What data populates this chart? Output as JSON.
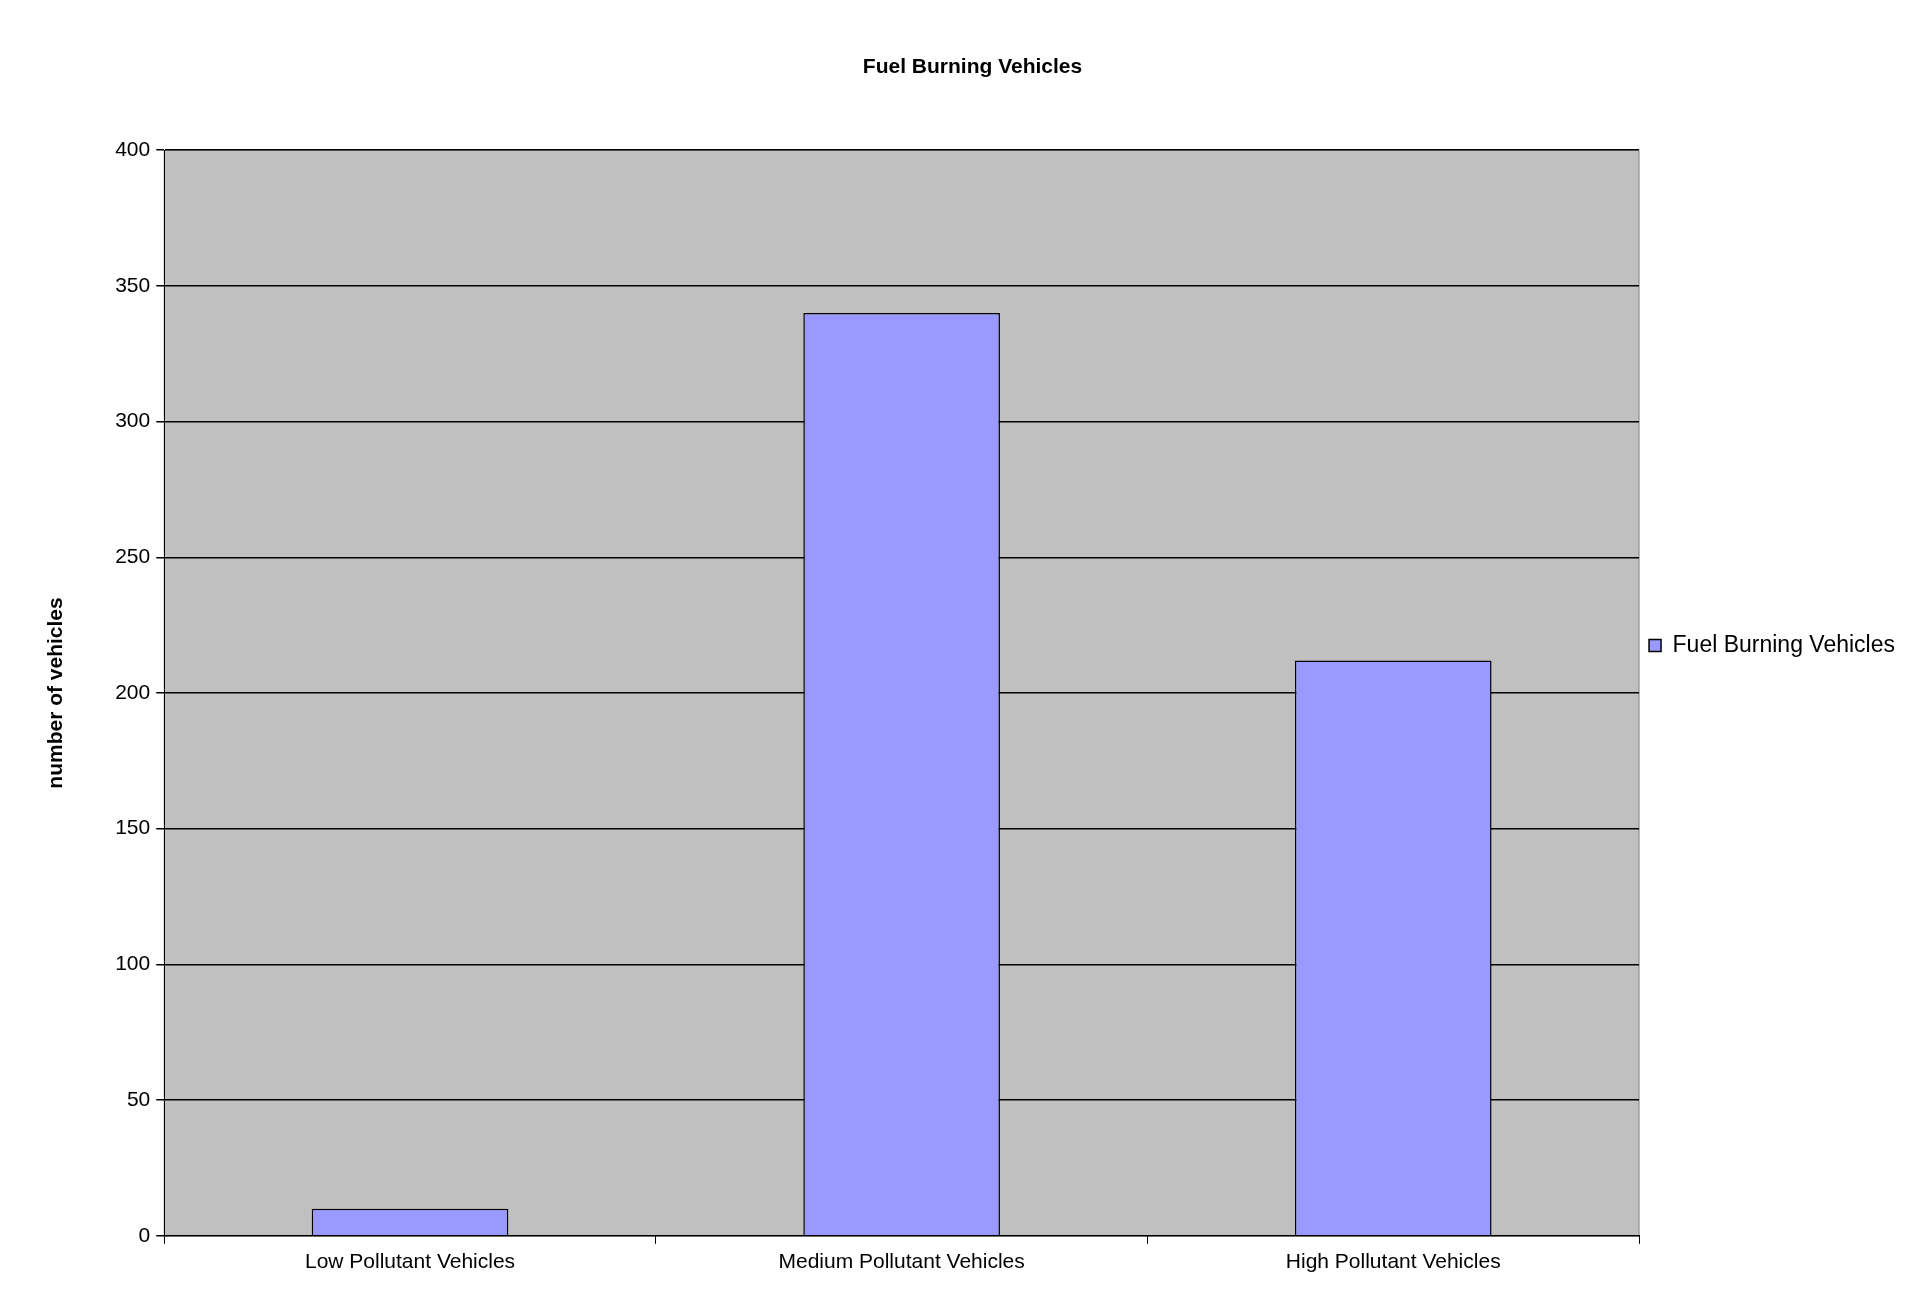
{
  "chart_data": {
    "type": "bar",
    "title": "Fuel Burning Vehicles",
    "ylabel": "number of vehicles",
    "categories": [
      "Low Pollutant Vehicles",
      "Medium Pollutant Vehicles",
      "High Pollutant Vehicles"
    ],
    "series": [
      {
        "name": "Fuel Burning Vehicles",
        "color": "#9999ff",
        "values": [
          10,
          340,
          212
        ]
      }
    ],
    "ylim": [
      0,
      400
    ],
    "yticks": [
      0,
      50,
      100,
      150,
      200,
      250,
      300,
      350,
      400
    ],
    "grid": "y",
    "legend": "right"
  }
}
